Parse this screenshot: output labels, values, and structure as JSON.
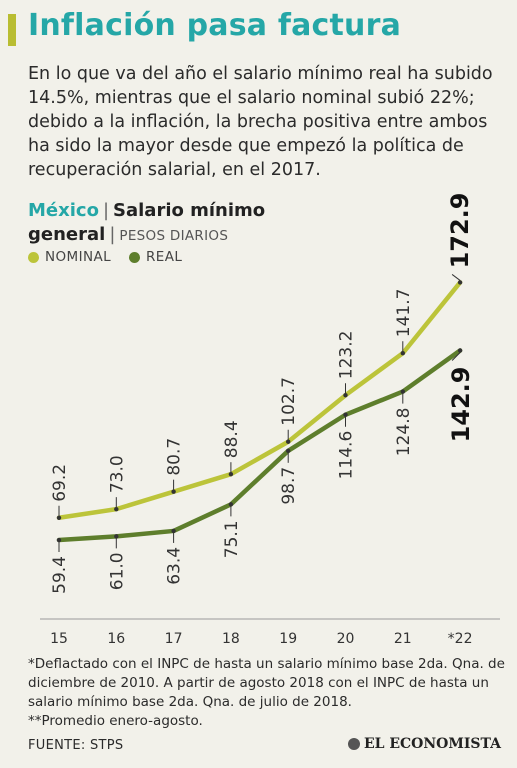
{
  "header": {
    "title": "Inflación pasa factura",
    "intro": "En lo que va del año el salario mínimo real ha subido 14.5%, mientras que el salario nominal subió 22%; debido a la inflación, la brecha positiva entre ambos ha sido la mayor desde que empezó la política de recuperación salarial, en el 2017."
  },
  "chart_header": {
    "country": "México",
    "sep": "|",
    "metric_line1": "Salario mínimo",
    "metric_line2": "general",
    "unit_sep": "|",
    "unit": "PESOS DIARIOS"
  },
  "colors": {
    "accent": "#b9bd32",
    "title": "#25a7a7",
    "nominal": "#bcc43a",
    "real": "#5e7e2c",
    "background": "#f2f1ea"
  },
  "chart_data": {
    "type": "line",
    "categories": [
      "15",
      "16",
      "17",
      "18",
      "19",
      "20",
      "21",
      "*22"
    ],
    "series": [
      {
        "name": "NOMINAL",
        "values": [
          69.2,
          73.0,
          80.7,
          88.4,
          102.7,
          123.2,
          141.7,
          172.9
        ],
        "labels": [
          "69.2",
          "73.0",
          "80.7",
          "88.4",
          "102.7",
          "123.2",
          "141.7",
          "172.9"
        ]
      },
      {
        "name": "REAL",
        "values": [
          59.4,
          61.0,
          63.4,
          75.1,
          98.7,
          114.6,
          124.8,
          142.9
        ],
        "labels": [
          "59.4",
          "61.0",
          "63.4",
          "75.1",
          "98.7",
          "114.6",
          "124.8",
          "142.9"
        ]
      }
    ],
    "ylim": [
      40,
      185
    ],
    "grid": false,
    "legend": "top-left"
  },
  "footnote": {
    "text1": "*Deflactado con el INPC de hasta un salario mínimo base 2da. Qna. de diciembre de 2010. A partir de agosto 2018 con el INPC de hasta un salario mínimo base 2da. Qna. de julio de 2018.",
    "text2": "**Promedio enero-agosto."
  },
  "source": "FUENTE: STPS",
  "brand": "EL ECONOMISTA"
}
